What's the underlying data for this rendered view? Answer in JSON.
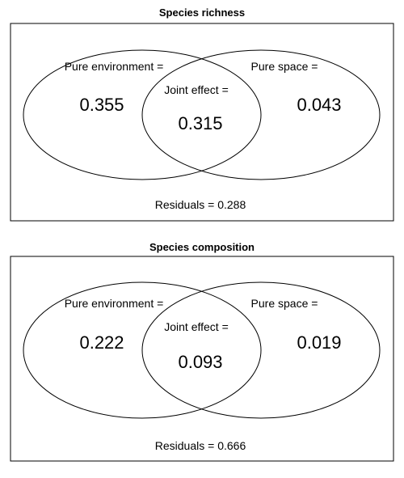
{
  "panels": [
    {
      "title": "Species richness",
      "pure_environment_label": "Pure environment =",
      "pure_environment_value": "0.355",
      "joint_effect_label": "Joint effect =",
      "joint_effect_value": "0.315",
      "pure_space_label": "Pure space =",
      "pure_space_value": "0.043",
      "residuals": "Residuals = 0.288"
    },
    {
      "title": "Species composition",
      "pure_environment_label": "Pure environment =",
      "pure_environment_value": "0.222",
      "joint_effect_label": "Joint effect =",
      "joint_effect_value": "0.093",
      "pure_space_label": "Pure space =",
      "pure_space_value": "0.019",
      "residuals": "Residuals = 0.666"
    }
  ]
}
